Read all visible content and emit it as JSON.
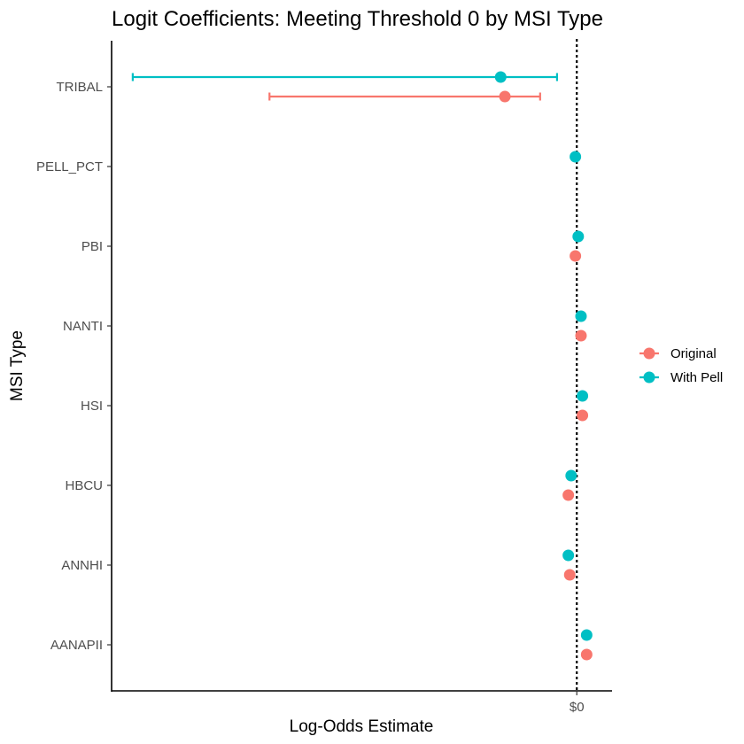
{
  "chart_data": {
    "type": "scatter",
    "title": "Logit Coefficients: Meeting Threshold 0 by MSI Type",
    "xlabel": "Log-Odds Estimate",
    "ylabel": "MSI Type",
    "categories": [
      "AANAPII",
      "ANNHI",
      "HBCU",
      "HSI",
      "NANTI",
      "PBI",
      "PELL_PCT",
      "TRIBAL"
    ],
    "x_ticks": [
      {
        "value": 0,
        "label": "$0"
      }
    ],
    "xlim": [
      -3.3,
      0.25
    ],
    "reference_line": 0,
    "grid": false,
    "legend_position": "right",
    "series": [
      {
        "name": "Original",
        "color": "#F8766D",
        "points": [
          {
            "category": "AANAPII",
            "estimate": 0.07
          },
          {
            "category": "ANNHI",
            "estimate": -0.05
          },
          {
            "category": "HBCU",
            "estimate": -0.06
          },
          {
            "category": "HSI",
            "estimate": 0.04
          },
          {
            "category": "NANTI",
            "estimate": 0.03
          },
          {
            "category": "PBI",
            "estimate": -0.01
          },
          {
            "category": "TRIBAL",
            "estimate": -0.51,
            "ci_low": -2.18,
            "ci_high": -0.26
          }
        ]
      },
      {
        "name": "With Pell",
        "color": "#00BFC4",
        "points": [
          {
            "category": "AANAPII",
            "estimate": 0.07
          },
          {
            "category": "ANNHI",
            "estimate": -0.06
          },
          {
            "category": "HBCU",
            "estimate": -0.04
          },
          {
            "category": "HSI",
            "estimate": 0.04
          },
          {
            "category": "NANTI",
            "estimate": 0.03
          },
          {
            "category": "PBI",
            "estimate": 0.01
          },
          {
            "category": "PELL_PCT",
            "estimate": -0.01
          },
          {
            "category": "TRIBAL",
            "estimate": -0.54,
            "ci_low": -3.15,
            "ci_high": -0.14
          }
        ]
      }
    ]
  }
}
